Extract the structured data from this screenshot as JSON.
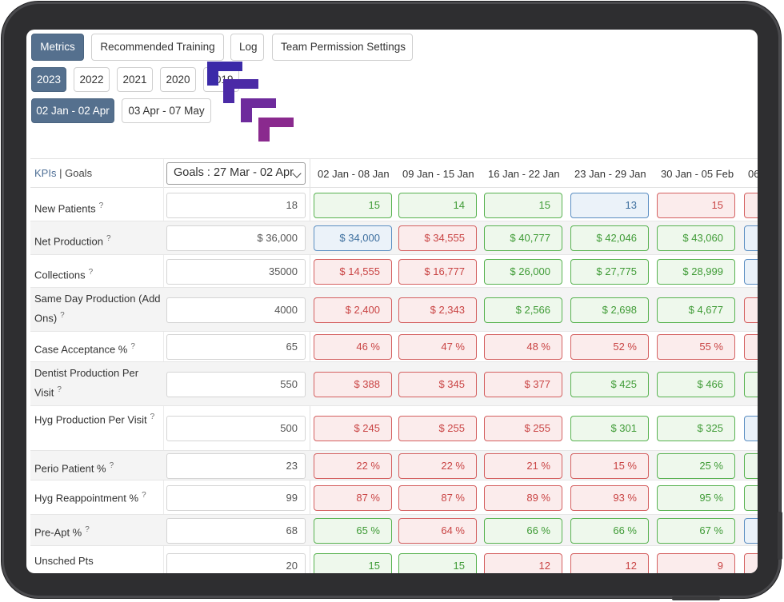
{
  "tabs": [
    {
      "label": "Metrics",
      "active": true
    },
    {
      "label": "Recommended Training",
      "active": false
    },
    {
      "label": "Log",
      "active": false
    },
    {
      "label": "Team Permission Settings",
      "active": false
    }
  ],
  "years": [
    {
      "label": "2023",
      "active": true
    },
    {
      "label": "2022",
      "active": false
    },
    {
      "label": "2021",
      "active": false
    },
    {
      "label": "2020",
      "active": false
    },
    {
      "label": "2019",
      "active": false
    }
  ],
  "ranges": [
    {
      "label": "02 Jan - 02 Apr",
      "active": true
    },
    {
      "label": "03 Apr - 07 May",
      "active": false
    }
  ],
  "table": {
    "kpis_label": "KPIs",
    "separator": "|",
    "goals_label": "Goals",
    "goals_select": "Goals : 27 Mar - 02 Apr",
    "help_mark": "?",
    "columns": [
      "02 Jan - 08 Jan",
      "09 Jan - 15 Jan",
      "16 Jan - 22 Jan",
      "23 Jan - 29 Jan",
      "30 Jan - 05 Feb",
      "06"
    ],
    "rows": [
      {
        "label": "New Patients",
        "goal": "18",
        "values": [
          "15",
          "14",
          "15",
          "13",
          "15",
          ""
        ],
        "status": [
          "green",
          "green",
          "green",
          "blue",
          "red",
          "red"
        ]
      },
      {
        "label": "Net Production",
        "goal": "$ 36,000",
        "values": [
          "$ 34,000",
          "$ 34,555",
          "$ 40,777",
          "$ 42,046",
          "$ 43,060",
          ""
        ],
        "status": [
          "blue",
          "red",
          "green",
          "green",
          "green",
          "blue"
        ]
      },
      {
        "label": "Collections",
        "goal": "35000",
        "values": [
          "$ 14,555",
          "$ 16,777",
          "$ 26,000",
          "$ 27,775",
          "$ 28,999",
          ""
        ],
        "status": [
          "red",
          "red",
          "green",
          "green",
          "green",
          "blue"
        ]
      },
      {
        "label": "Same Day Production (Add Ons)",
        "goal": "4000",
        "values": [
          "$ 2,400",
          "$ 2,343",
          "$ 2,566",
          "$ 2,698",
          "$ 4,677",
          ""
        ],
        "status": [
          "red",
          "red",
          "green",
          "green",
          "green",
          "red"
        ]
      },
      {
        "label": "Case Acceptance %",
        "goal": "65",
        "values": [
          "46 %",
          "47 %",
          "48 %",
          "52 %",
          "55 %",
          ""
        ],
        "status": [
          "red",
          "red",
          "red",
          "red",
          "red",
          "red"
        ]
      },
      {
        "label": "Dentist Production Per Visit",
        "goal": "550",
        "values": [
          "$ 388",
          "$ 345",
          "$ 377",
          "$ 425",
          "$ 466",
          ""
        ],
        "status": [
          "red",
          "red",
          "red",
          "green",
          "green",
          "green"
        ]
      },
      {
        "label": "Hyg Production Per Visit",
        "goal": "500",
        "values": [
          "$ 245",
          "$ 255",
          "$ 255",
          "$ 301",
          "$ 325",
          ""
        ],
        "status": [
          "red",
          "red",
          "red",
          "green",
          "green",
          "blue"
        ]
      },
      {
        "label": "Perio Patient %",
        "goal": "23",
        "values": [
          "22 %",
          "22 %",
          "21 %",
          "15 %",
          "25 %",
          ""
        ],
        "status": [
          "red",
          "red",
          "red",
          "red",
          "green",
          "green"
        ]
      },
      {
        "label": "Hyg Reappointment %",
        "goal": "99",
        "values": [
          "87 %",
          "87 %",
          "89 %",
          "93 %",
          "95 %",
          ""
        ],
        "status": [
          "red",
          "red",
          "red",
          "red",
          "green",
          "green"
        ]
      },
      {
        "label": "Pre-Apt %",
        "goal": "68",
        "values": [
          "65 %",
          "64 %",
          "66 %",
          "66 %",
          "67 %",
          ""
        ],
        "status": [
          "green",
          "red",
          "green",
          "green",
          "green",
          "blue"
        ]
      },
      {
        "label": "Unsched Pts Rescheduled",
        "goal": "20",
        "values": [
          "15",
          "15",
          "12",
          "12",
          "9",
          ""
        ],
        "status": [
          "green",
          "green",
          "red",
          "red",
          "red",
          "red"
        ]
      }
    ]
  },
  "colors": {
    "active_button": "#55708e",
    "good": "#58b250",
    "bad": "#d46060",
    "neutral": "#5b8ec2",
    "logo_top": "#3b2aa8",
    "logo_bottom": "#8a2a8e"
  }
}
